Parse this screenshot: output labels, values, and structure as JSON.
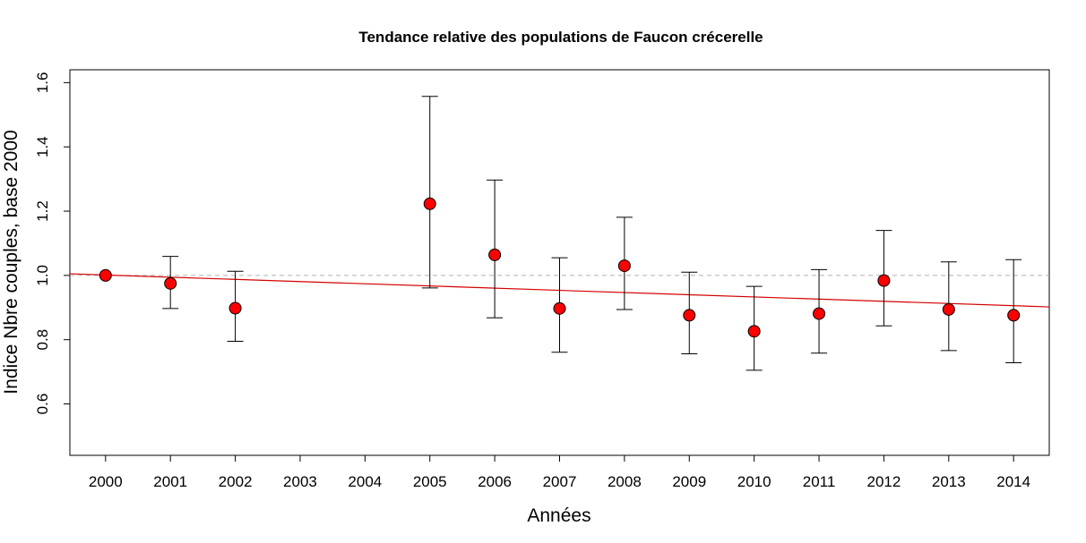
{
  "chart_data": {
    "type": "scatter",
    "title": "Tendance relative des populations de Faucon crécerelle",
    "xlabel": "Années",
    "ylabel": "Indice Nbre couples, base 2000",
    "xlim": [
      1999.45,
      2014.55
    ],
    "ylim": [
      0.44,
      1.64
    ],
    "xticks": [
      2000,
      2001,
      2002,
      2003,
      2004,
      2005,
      2006,
      2007,
      2008,
      2009,
      2010,
      2011,
      2012,
      2013,
      2014
    ],
    "yticks": [
      0.6,
      0.8,
      1.0,
      1.2,
      1.4,
      1.6
    ],
    "yticks_labels": [
      "0.6",
      "0.8",
      "1.0",
      "1.2",
      "1.4",
      "1.6"
    ],
    "series": [
      {
        "name": "Indice",
        "x": [
          2000,
          2001,
          2002,
          2005,
          2006,
          2007,
          2008,
          2009,
          2010,
          2011,
          2012,
          2013,
          2014
        ],
        "values": [
          1.0,
          0.975,
          0.898,
          1.223,
          1.064,
          0.897,
          1.03,
          0.876,
          0.826,
          0.881,
          0.984,
          0.894,
          0.876
        ],
        "lower": [
          1.0,
          0.897,
          0.795,
          0.961,
          0.868,
          0.761,
          0.894,
          0.756,
          0.705,
          0.758,
          0.843,
          0.766,
          0.728
        ],
        "upper": [
          1.0,
          1.059,
          1.013,
          1.557,
          1.297,
          1.055,
          1.181,
          1.01,
          0.966,
          1.018,
          1.14,
          1.042,
          1.049
        ]
      }
    ],
    "reference_line": {
      "y": 1.0,
      "style": "dashed",
      "color": "#b0b0b0"
    },
    "trend_line": {
      "y_at_xmin": 1.005,
      "y_at_xmax": 0.902,
      "color": "#d40000"
    },
    "point_color": "#ff0000"
  }
}
